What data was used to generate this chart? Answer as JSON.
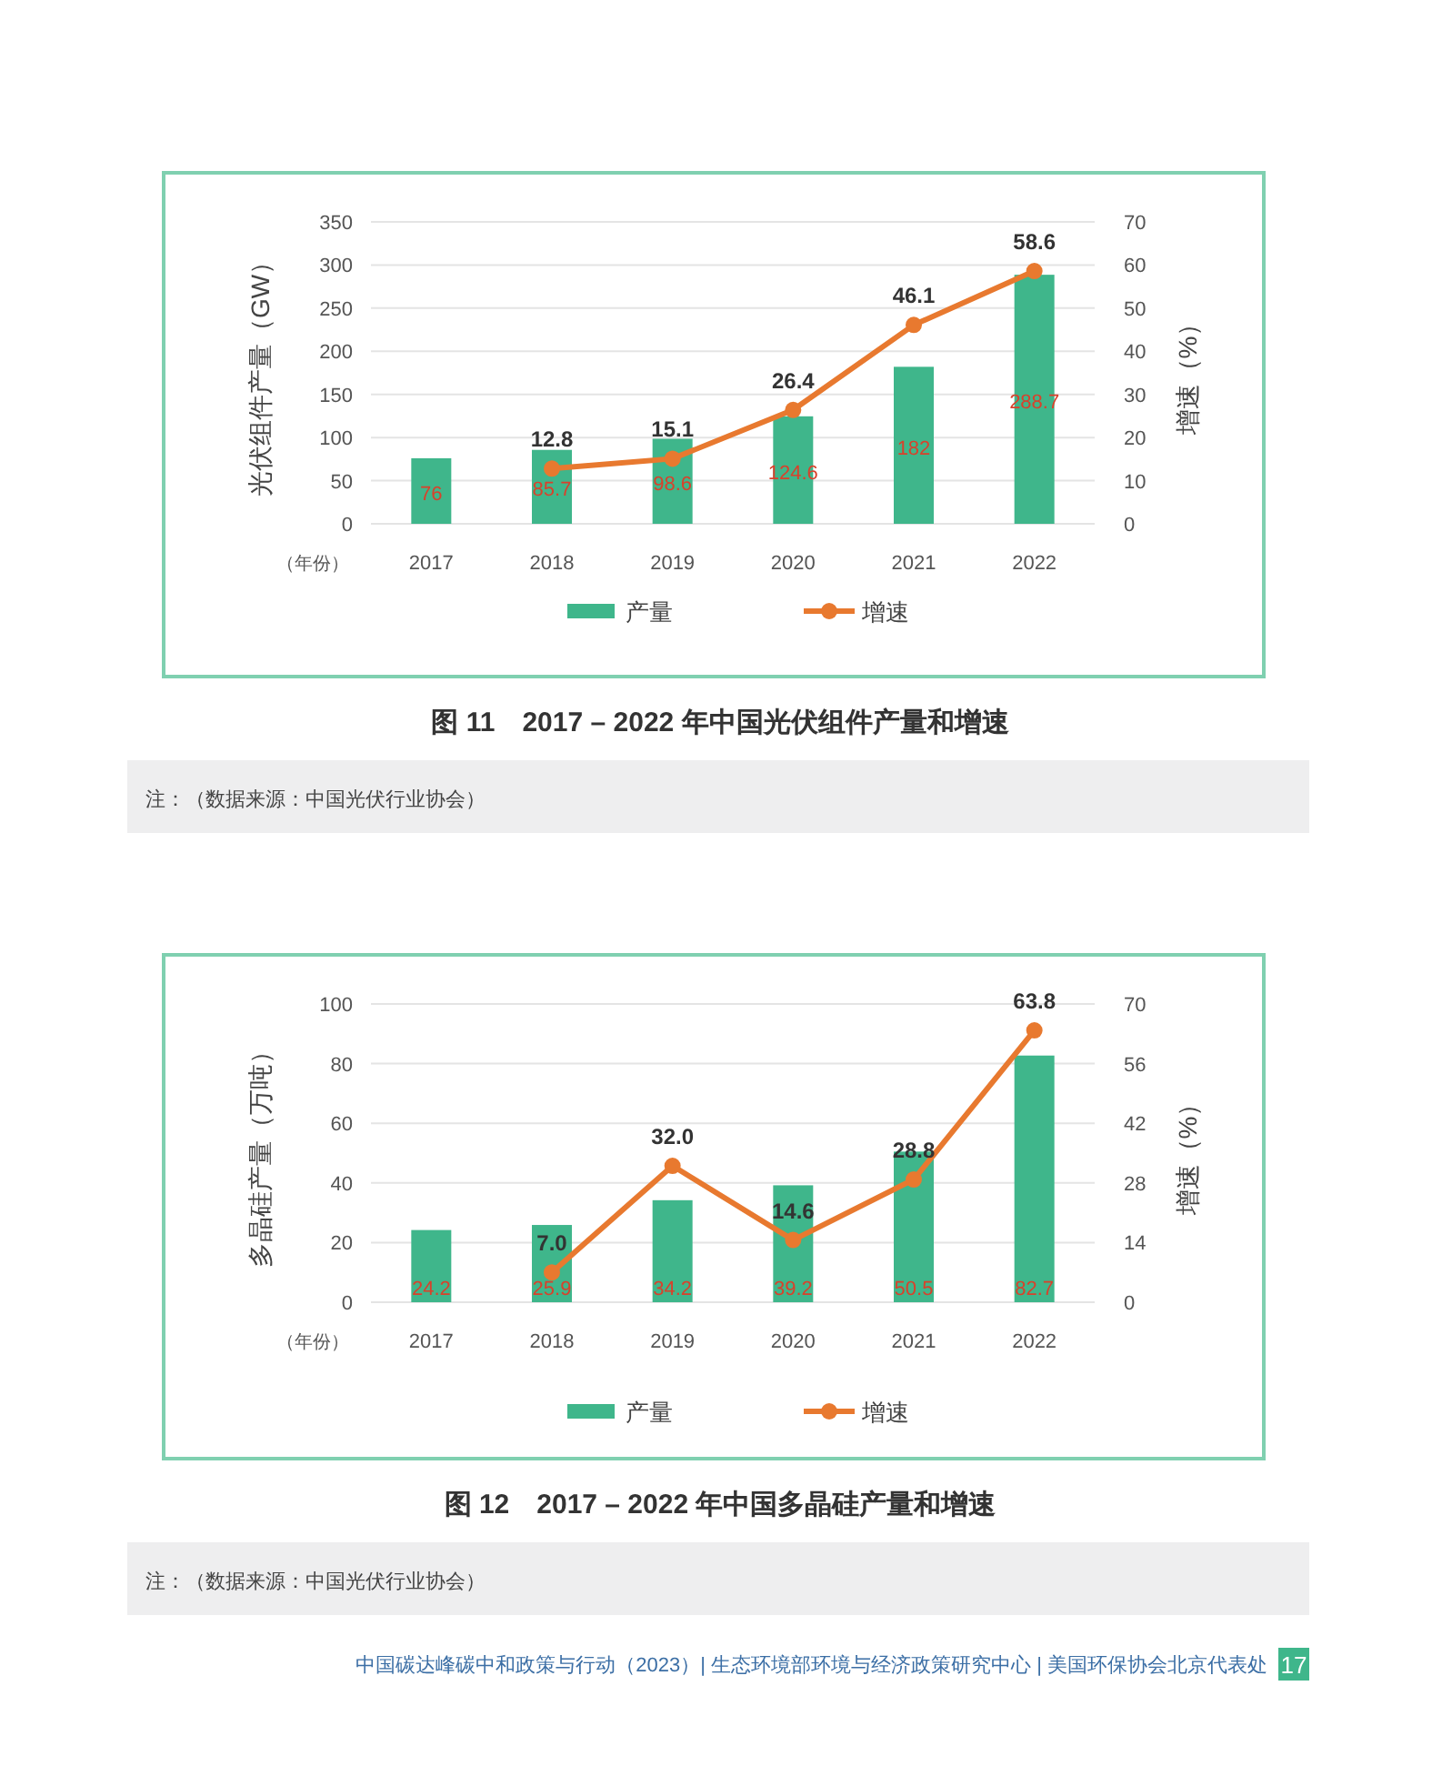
{
  "chart_data": [
    {
      "type": "bar",
      "title": "图 11　2017 – 2022 年中国光伏组件产量和增速",
      "ylabel": "光伏组件产量（GW）",
      "y2label": "增速（%）",
      "categories": [
        "2017",
        "2018",
        "2019",
        "2020",
        "2021",
        "2022"
      ],
      "series": [
        {
          "name": "产量",
          "color": "#3fb68b",
          "values": [
            76,
            85.7,
            98.6,
            124.6,
            182,
            288.7
          ],
          "value_labels": [
            "76",
            "85.7",
            "98.6",
            "124.6",
            "182",
            "288.7"
          ]
        },
        {
          "name": "增速",
          "type": "line",
          "axis": "y2",
          "color": "#e8792f",
          "values": [
            null,
            12.8,
            15.1,
            26.4,
            46.1,
            58.6
          ],
          "value_labels": [
            null,
            "12.8",
            "15.1",
            "26.4",
            "46.1",
            "58.6"
          ]
        }
      ],
      "ylim": [
        0,
        350
      ],
      "yticks": [
        0,
        50,
        100,
        150,
        200,
        250,
        300,
        350
      ],
      "y2lim": [
        0,
        70
      ],
      "y2ticks": [
        0,
        10,
        20,
        30,
        40,
        50,
        60,
        70
      ],
      "grid": "y",
      "legend": "bottom",
      "marker": "circle",
      "annotations": [
        "（年份）",
        "注：（数据来源：中国光伏行业协会）"
      ]
    },
    {
      "type": "bar",
      "title": "图 12　2017 – 2022 年中国多晶硅产量和增速",
      "ylabel": "多晶硅产量（万吨）",
      "y2label": "增速（%）",
      "categories": [
        "2017",
        "2018",
        "2019",
        "2020",
        "2021",
        "2022"
      ],
      "series": [
        {
          "name": "产量",
          "color": "#3fb68b",
          "values": [
            24.2,
            25.9,
            34.2,
            39.2,
            50.5,
            82.7
          ],
          "value_labels": [
            "24.2",
            "25.9",
            "34.2",
            "39.2",
            "50.5",
            "82.7"
          ]
        },
        {
          "name": "增速",
          "type": "line",
          "axis": "y2",
          "color": "#e8792f",
          "values": [
            null,
            7.0,
            32.0,
            14.6,
            28.8,
            63.8
          ],
          "value_labels": [
            null,
            "7.0",
            "32.0",
            "14.6",
            "28.8",
            "63.8"
          ]
        }
      ],
      "ylim": [
        0,
        100
      ],
      "yticks": [
        0,
        20,
        40,
        60,
        80,
        100
      ],
      "y2lim": [
        0,
        70
      ],
      "y2ticks": [
        0,
        14,
        28,
        42,
        56,
        70
      ],
      "grid": "y",
      "legend": "bottom",
      "marker": "circle",
      "annotations": [
        "（年份）",
        "注：（数据来源：中国光伏行业协会）",
        "中国碳达峰碳中和政策与行动（2023）| 生态环境部环境与经济政策研究中心 | 美国环保协会北京代表处",
        "17"
      ]
    }
  ]
}
